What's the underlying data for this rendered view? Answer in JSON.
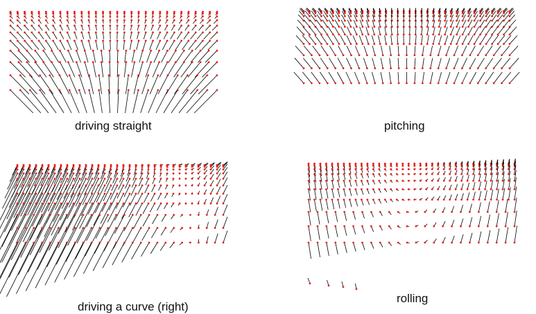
{
  "panels": [
    {
      "id": "driving_straight",
      "caption": "driving straight",
      "flow": "expansion"
    },
    {
      "id": "pitching",
      "caption": "pitching",
      "flow": "pitch"
    },
    {
      "id": "driving_curve_right",
      "caption": "driving a curve (right)",
      "flow": "curve"
    },
    {
      "id": "rolling",
      "caption": "rolling",
      "flow": "roll"
    }
  ],
  "colors": {
    "point": "#e8201a",
    "vector": "#000000",
    "background": "#ffffff"
  }
}
